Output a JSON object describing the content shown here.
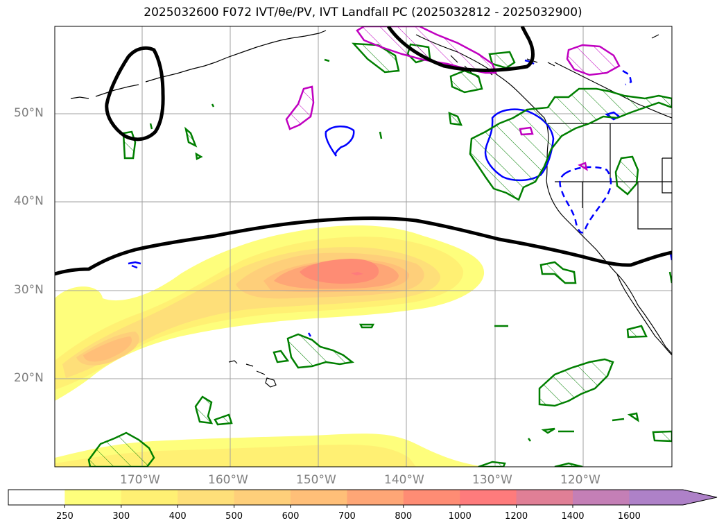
{
  "title": "2025032600 F072 IVT/θe/PV, IVT Landfall PC (2025032812 - 2025032900)",
  "lat_labels": [
    "50°N",
    "40°N",
    "30°N",
    "20°N"
  ],
  "lon_labels": [
    "170°W",
    "160°W",
    "150°W",
    "140°W",
    "130°W",
    "120°W"
  ],
  "colorbar": {
    "levels": [
      "250",
      "300",
      "400",
      "500",
      "600",
      "700",
      "800",
      "1000",
      "1200",
      "1400",
      "1600"
    ],
    "colors": [
      "#ffffff",
      "#fefe7c",
      "#fff073",
      "#fedf79",
      "#fecf7a",
      "#ffbf78",
      "#fea676",
      "#fe8c74",
      "#fe7b7c",
      "#e07f96",
      "#c47fb6",
      "#ae81c8"
    ],
    "extend": "max"
  },
  "colors": {
    "pv_positive": "#c000c0",
    "pv_contour": "#007f00",
    "theta_e": "#0000ff",
    "ivt_pc_contour": "#000000",
    "coastline": "#000000",
    "gridline": "#a0a0a0"
  }
}
